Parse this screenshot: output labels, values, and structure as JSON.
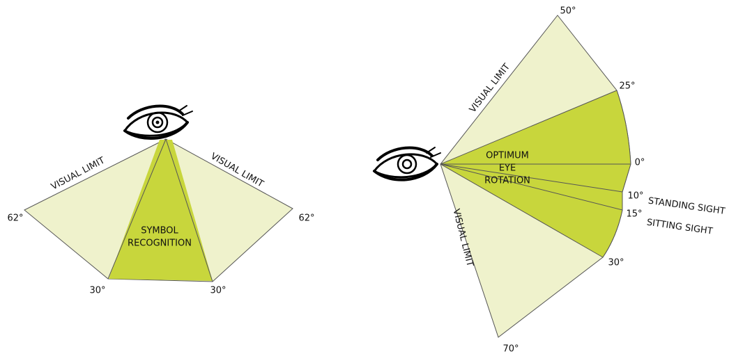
{
  "horizontal_view": {
    "visual_limit_left": "VISUAL LIMIT",
    "visual_limit_right": "VISUAL LIMIT",
    "limit_left": "62°",
    "limit_right": "62°",
    "symbol_left": "30°",
    "symbol_right": "30°",
    "center_label": [
      "SYMBOL",
      "RECOGNITION"
    ]
  },
  "vertical_view": {
    "visual_limit_top": "VISUAL LIMIT",
    "visual_limit_bottom": "VISUAL LIMIT",
    "up_limit": "50°",
    "up_optimum": "25°",
    "horizon": "0°",
    "standing": "10°",
    "standing_label": "STANDING SIGHT",
    "sitting": "15°",
    "sitting_label": "SITTING SIGHT",
    "down_optimum": "30°",
    "down_limit": "70°",
    "center_label": [
      "OPTIMUM",
      "EYE",
      "ROTATION"
    ]
  }
}
